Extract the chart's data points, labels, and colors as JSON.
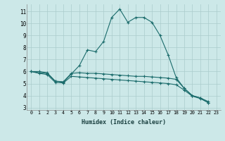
{
  "title": "",
  "xlabel": "Humidex (Indice chaleur)",
  "ylabel": "",
  "background_color": "#cce8e8",
  "grid_color": "#aacccc",
  "line_color": "#1a6b6b",
  "marker_color": "#1a6b6b",
  "xlim": [
    -0.5,
    23.5
  ],
  "ylim": [
    2.8,
    11.6
  ],
  "yticks": [
    3,
    4,
    5,
    6,
    7,
    8,
    9,
    10,
    11
  ],
  "xticks": [
    0,
    1,
    2,
    3,
    4,
    5,
    6,
    7,
    8,
    9,
    10,
    11,
    12,
    13,
    14,
    15,
    16,
    17,
    18,
    19,
    20,
    21,
    22,
    23
  ],
  "series": [
    {
      "x": [
        0,
        1,
        2,
        3,
        4,
        5,
        6,
        7,
        8,
        9,
        10,
        11,
        12,
        13,
        14,
        15,
        16,
        17,
        18,
        19,
        20,
        21,
        22
      ],
      "y": [
        6.0,
        6.0,
        5.9,
        5.2,
        5.1,
        5.8,
        6.5,
        7.8,
        7.65,
        8.5,
        10.5,
        11.2,
        10.1,
        10.5,
        10.5,
        10.1,
        9.0,
        7.4,
        5.5,
        4.6,
        4.0,
        3.8,
        3.4
      ]
    },
    {
      "x": [
        0,
        1,
        2,
        3,
        4,
        5,
        6,
        7,
        8,
        9,
        10,
        11,
        12,
        13,
        14,
        15,
        16,
        17,
        18,
        19,
        20,
        21,
        22
      ],
      "y": [
        6.0,
        5.9,
        5.85,
        5.2,
        5.15,
        5.85,
        5.9,
        5.85,
        5.85,
        5.8,
        5.75,
        5.7,
        5.65,
        5.6,
        5.6,
        5.55,
        5.5,
        5.45,
        5.35,
        4.6,
        4.0,
        3.8,
        3.5
      ]
    },
    {
      "x": [
        0,
        1,
        2,
        3,
        4,
        5,
        6,
        7,
        8,
        9,
        10,
        11,
        12,
        13,
        14,
        15,
        16,
        17,
        18,
        19,
        20,
        21,
        22
      ],
      "y": [
        6.0,
        5.85,
        5.75,
        5.1,
        5.05,
        5.6,
        5.55,
        5.5,
        5.45,
        5.4,
        5.35,
        5.3,
        5.25,
        5.2,
        5.15,
        5.1,
        5.05,
        5.0,
        4.9,
        4.45,
        3.95,
        3.75,
        3.4
      ]
    }
  ]
}
